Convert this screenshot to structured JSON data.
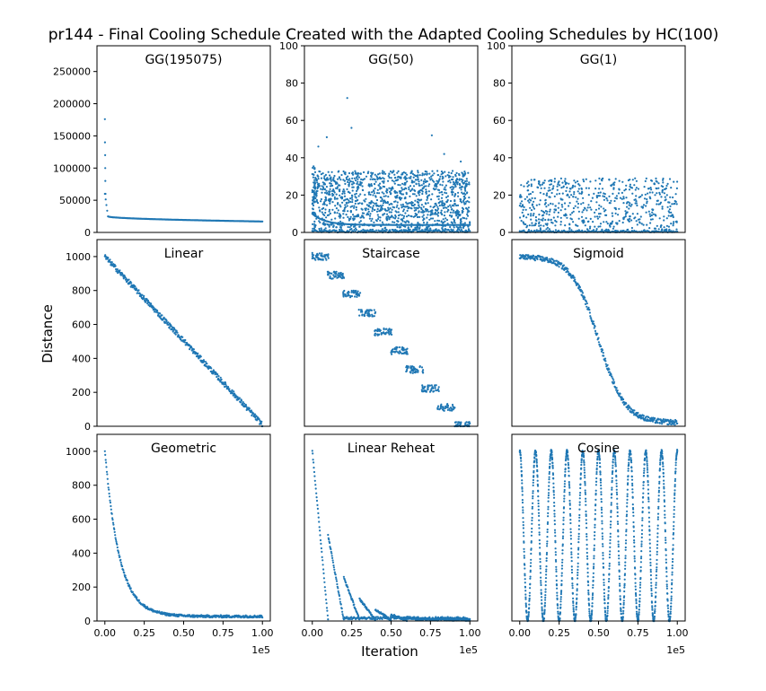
{
  "figure_title": "pr144 - Final Cooling Schedule Created with the Adapted Cooling Schedules by HC(100)",
  "ylabel": "Distance",
  "xlabel": "Iteration",
  "x_offset_label": "1e5",
  "colors": {
    "points": "#1f77b4"
  },
  "chart_data": [
    {
      "type": "scatter",
      "title": "GG(195075)",
      "xlim": [
        -0.05,
        1.05
      ],
      "ylim": [
        0,
        290000
      ],
      "yticks": [
        0,
        50000,
        100000,
        150000,
        200000,
        250000
      ],
      "yticklabels": [
        "0",
        "50000",
        "100000",
        "150000",
        "200000",
        "250000"
      ],
      "series": [
        {
          "shape": "gg_large",
          "x_range": [
            0,
            1
          ],
          "values": {
            "start": 176000,
            "early": [
              140000,
              120000,
              100000,
              80000,
              60000
            ],
            "plateau_start": 25000,
            "plateau_mid": 19000,
            "end": 17000
          }
        }
      ]
    },
    {
      "type": "scatter",
      "title": "GG(50)",
      "xlim": [
        -0.05,
        1.05
      ],
      "ylim": [
        0,
        100
      ],
      "yticks": [
        0,
        20,
        40,
        60,
        80,
        100
      ],
      "yticklabels": [
        "0",
        "20",
        "40",
        "60",
        "80",
        "100"
      ],
      "series": [
        {
          "shape": "gg_mid",
          "x_range": [
            0,
            1
          ],
          "values": {
            "band_max": 33,
            "floor": 0,
            "low_line_start": 10,
            "low_line_end": 4,
            "outliers": [
              72,
              56,
              52,
              46,
              42,
              51,
              38
            ]
          }
        }
      ]
    },
    {
      "type": "scatter",
      "title": "GG(1)",
      "xlim": [
        -0.05,
        1.05
      ],
      "ylim": [
        0,
        100
      ],
      "yticks": [
        0,
        20,
        40,
        60,
        80,
        100
      ],
      "yticklabels": [
        "0",
        "20",
        "40",
        "60",
        "80",
        "100"
      ],
      "series": [
        {
          "shape": "gg_small",
          "x_range": [
            0,
            1
          ],
          "values": {
            "band_max": 29,
            "floor": 0
          }
        }
      ]
    },
    {
      "type": "scatter",
      "title": "Linear",
      "xlim": [
        -0.05,
        1.05
      ],
      "ylim": [
        0,
        1100
      ],
      "yticks": [
        0,
        200,
        400,
        600,
        800,
        1000
      ],
      "yticklabels": [
        "0",
        "200",
        "400",
        "600",
        "800",
        "1000"
      ],
      "series": [
        {
          "shape": "linear",
          "x_range": [
            0,
            1
          ],
          "values": {
            "start": 1000,
            "end": 10
          }
        }
      ]
    },
    {
      "type": "scatter",
      "title": "Staircase",
      "xlim": [
        -0.05,
        1.05
      ],
      "ylim": [
        0,
        1100
      ],
      "yticks": [],
      "yticklabels": [],
      "series": [
        {
          "shape": "staircase",
          "x_range": [
            0,
            1
          ],
          "values": {
            "levels": [
              1000,
              890,
              779,
              668,
              556,
              445,
              334,
              222,
              111,
              5
            ]
          }
        }
      ]
    },
    {
      "type": "scatter",
      "title": "Sigmoid",
      "xlim": [
        -0.05,
        1.05
      ],
      "ylim": [
        0,
        1100
      ],
      "yticks": [],
      "yticklabels": [],
      "series": [
        {
          "shape": "sigmoid",
          "x_range": [
            0,
            1
          ],
          "values": {
            "start": 1000,
            "end": 20,
            "midpoint": 0.5
          }
        }
      ]
    },
    {
      "type": "scatter",
      "title": "Geometric",
      "xlim": [
        -0.05,
        1.05
      ],
      "ylim": [
        0,
        1100
      ],
      "yticks": [
        0,
        200,
        400,
        600,
        800,
        1000
      ],
      "yticklabels": [
        "0",
        "200",
        "400",
        "600",
        "800",
        "1000"
      ],
      "xticks": [
        0,
        0.25,
        0.5,
        0.75,
        1
      ],
      "xticklabels": [
        "0.00",
        "0.25",
        "0.50",
        "0.75",
        "1.00"
      ],
      "series": [
        {
          "shape": "geometric",
          "x_range": [
            0,
            1
          ],
          "values": {
            "start": 1000,
            "end": 20
          }
        }
      ]
    },
    {
      "type": "scatter",
      "title": "Linear Reheat",
      "xlim": [
        -0.05,
        1.05
      ],
      "ylim": [
        0,
        1100
      ],
      "yticks": [],
      "yticklabels": [],
      "xticks": [
        0,
        0.25,
        0.5,
        0.75,
        1
      ],
      "xticklabels": [
        "0.00",
        "0.25",
        "0.50",
        "0.75",
        "1.00"
      ],
      "series": [
        {
          "shape": "reheat",
          "x_range": [
            0,
            1
          ],
          "values": {
            "peaks": [
              1000,
              500,
              250,
              125,
              62,
              31,
              16,
              8,
              4,
              2
            ],
            "floor": 10
          }
        }
      ]
    },
    {
      "type": "scatter",
      "title": "Cosine",
      "xlim": [
        -0.05,
        1.05
      ],
      "ylim": [
        0,
        1100
      ],
      "yticks": [],
      "yticklabels": [],
      "xticks": [
        0,
        0.25,
        0.5,
        0.75,
        1
      ],
      "xticklabels": [
        "0.00",
        "0.25",
        "0.50",
        "0.75",
        "1.00"
      ],
      "series": [
        {
          "shape": "cosine",
          "x_range": [
            0,
            1
          ],
          "values": {
            "max": 1000,
            "min": 0,
            "cycles": 10
          }
        }
      ]
    }
  ]
}
